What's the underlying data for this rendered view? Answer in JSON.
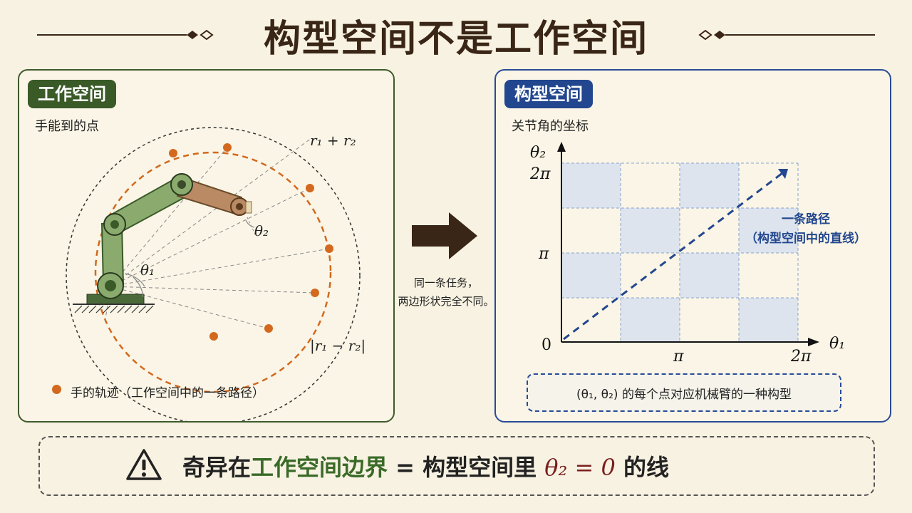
{
  "title": "构型空间不是工作空间",
  "workspace": {
    "tag": "工作空间",
    "subtitle": "手能到的点",
    "label_outer": "r₁ + r₂",
    "label_inner": "|r₁ − r₂|",
    "label_theta1": "θ₁",
    "label_theta2": "θ₂",
    "legend": "手的轨迹（工作空间中的一条路径）",
    "colors": {
      "arm_green": "#8bab6e",
      "arm_brown": "#b98a64",
      "path": "#d2691e"
    }
  },
  "transition": {
    "line1": "同一条任务，",
    "line2": "两边形状完全不同。"
  },
  "config_space": {
    "tag": "构型空间",
    "subtitle": "关节角的坐标",
    "axis_y": "θ₂",
    "axis_x": "θ₁",
    "tick_2pi_y": "2π",
    "tick_pi_y": "π",
    "tick_origin": "0",
    "tick_pi_x": "π",
    "tick_2pi_x": "2π",
    "path_label1": "一条路径",
    "path_label2": "（构型空间中的直线）",
    "note": "(θ₁, θ₂) 的每个点对应机械臂的一种构型",
    "colors": {
      "line": "#23478f",
      "cell": "#dde4ee"
    }
  },
  "bottom": {
    "part1": "奇异在",
    "part2": "工作空间边界",
    "part3": " = 构型空间里 ",
    "part4": "θ₂ = 0",
    "part5": " 的线"
  }
}
